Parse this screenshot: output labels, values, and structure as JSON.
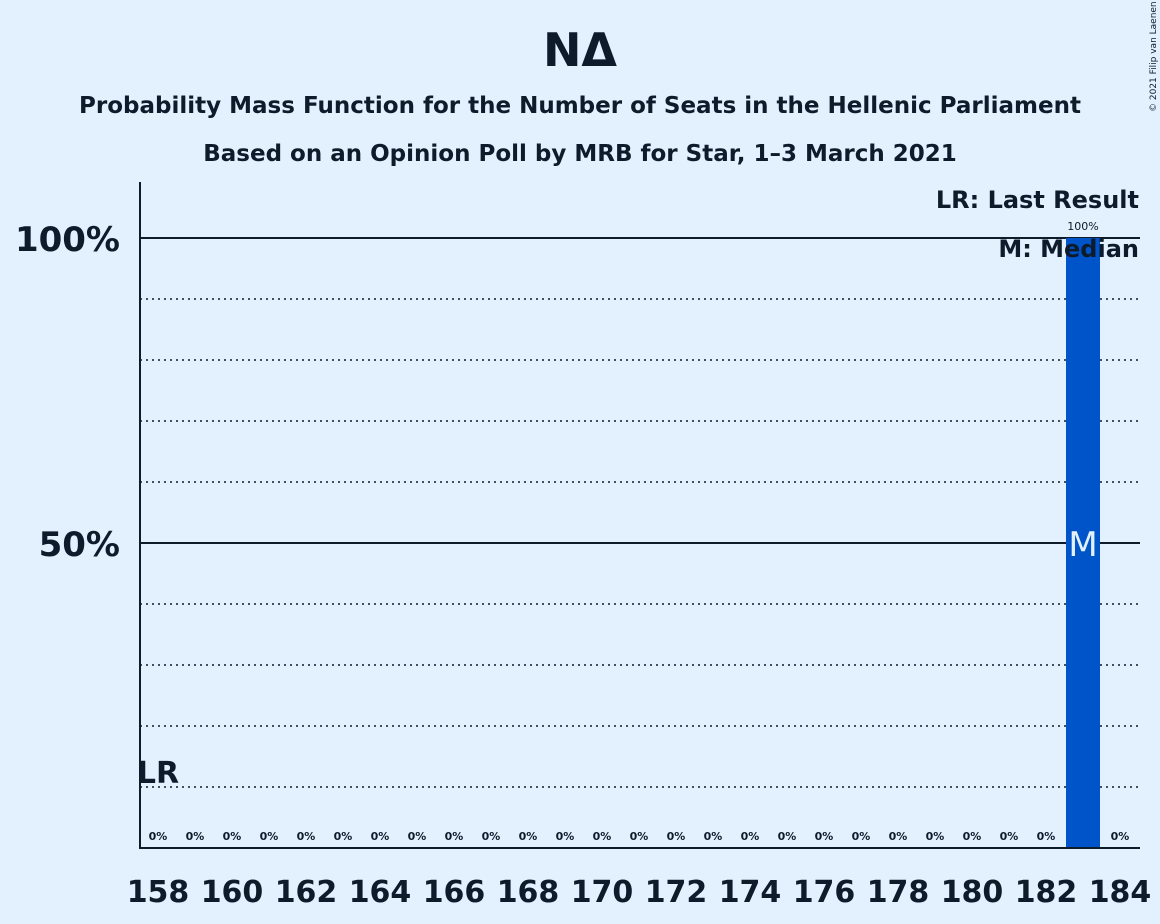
{
  "chart_data": {
    "type": "bar",
    "title": "ΝΔ",
    "subtitle": "Probability Mass Function for the Number of Seats in the Hellenic Parliament",
    "subtitle2": "Based on an Opinion Poll by MRB for Star, 1–3 March 2021",
    "copyright": "© 2021 Filip van Laenen",
    "x": [
      158,
      159,
      160,
      161,
      162,
      163,
      164,
      165,
      166,
      167,
      168,
      169,
      170,
      171,
      172,
      173,
      174,
      175,
      176,
      177,
      178,
      179,
      180,
      181,
      182,
      183,
      184
    ],
    "values": [
      0,
      0,
      0,
      0,
      0,
      0,
      0,
      0,
      0,
      0,
      0,
      0,
      0,
      0,
      0,
      0,
      0,
      0,
      0,
      0,
      0,
      0,
      0,
      0,
      0,
      100,
      0
    ],
    "value_labels": [
      "0%",
      "0%",
      "0%",
      "0%",
      "0%",
      "0%",
      "0%",
      "0%",
      "0%",
      "0%",
      "0%",
      "0%",
      "0%",
      "0%",
      "0%",
      "0%",
      "0%",
      "0%",
      "0%",
      "0%",
      "0%",
      "0%",
      "0%",
      "0%",
      "0%",
      "100%",
      "0%"
    ],
    "x_tick_labels": [
      "158",
      "160",
      "162",
      "164",
      "166",
      "168",
      "170",
      "172",
      "174",
      "176",
      "178",
      "180",
      "182",
      "184"
    ],
    "x_tick_values": [
      158,
      160,
      162,
      164,
      166,
      168,
      170,
      172,
      174,
      176,
      178,
      180,
      182,
      184
    ],
    "y_tick_labels": [
      "50%",
      "100%"
    ],
    "y_tick_values": [
      50,
      100
    ],
    "ylim": [
      0,
      109
    ],
    "grid_minor_step": 10,
    "last_result": {
      "x": 158,
      "label": "LR"
    },
    "median": {
      "x": 183,
      "label": "M"
    },
    "legend": {
      "lr": "LR: Last Result",
      "m": "M: Median",
      "placement": "top-right"
    },
    "colors": {
      "bar": "#0054c9",
      "background": "#e3f0fe",
      "text": "#0d1b2a",
      "median_text": "#e3f0fe"
    }
  }
}
